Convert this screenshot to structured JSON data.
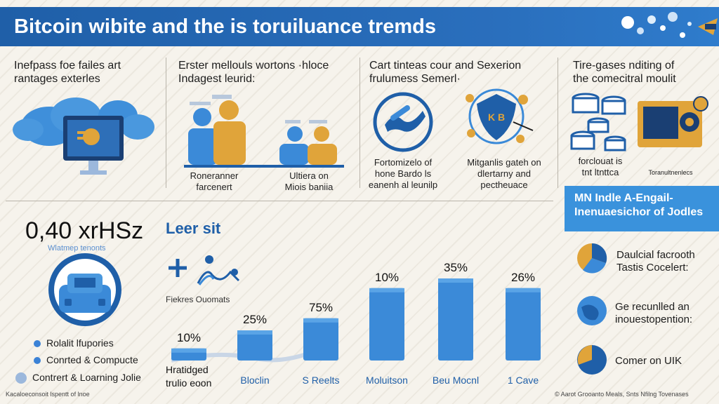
{
  "header": {
    "title": "Bitcoin wibite and the is toruiluance tremds"
  },
  "panels": [
    {
      "line1": "Inefpass foe failes art",
      "line2": "rantages exterles"
    },
    {
      "line1": "Erster mellouls wortons ·hloce",
      "line2": "Indagest leurid:",
      "captions": [
        {
          "line1": "Roneranner",
          "line2": "farcenert"
        },
        {
          "line1": "Ultiera on",
          "line2": "Miois baniia"
        }
      ]
    },
    {
      "line1": "Cart tinteas cour and Sexerion",
      "line2": "frulumess Semerl·",
      "captions": [
        {
          "line1": "Fortomizelo of",
          "line2": "hone Bardo ls",
          "line3": "eanenh al leunilp"
        },
        {
          "line1": "Mitganlis gateh on",
          "line2": "dlertarny and",
          "line3": "pectheuace"
        }
      ],
      "shield_text": "K B"
    },
    {
      "line1": "Tire-gases nditing of",
      "line2": "the comecitral moulit",
      "caption": {
        "line1": "forclouat is",
        "line2": "tnt ltnttca"
      },
      "small_caption": "Toranultnenlecs"
    }
  ],
  "stats": {
    "big": "0,40 xrHSz",
    "sub": "Wlatmep tenonts",
    "legend": [
      "Rolalit lfupories",
      "Conrted & Compucte",
      "Contrert & Loarning Jolie"
    ]
  },
  "chart_data": {
    "type": "bar",
    "title": "Leer sit",
    "note": "Fiekres Ouomats",
    "categories": [
      "Hratidged trulio eoon",
      "Bloclin",
      "S Reelts",
      "Moluitson",
      "Beu Mocnl",
      "1 Cave"
    ],
    "values": [
      10,
      25,
      75,
      10,
      35,
      26
    ],
    "labels": [
      "10%",
      "25%",
      "75%",
      "10%",
      "35%",
      "26%"
    ],
    "heights_pct": [
      10,
      25,
      35,
      60,
      68,
      60
    ],
    "color": "#3b8ad8"
  },
  "sidebar": {
    "box_line1": "MN Indle A-Engail-",
    "box_line2": "Inenuaesichor of Jodles",
    "items": [
      {
        "line1": "Daulcial facrooth",
        "line2": "Tastis Cocelert:"
      },
      {
        "line1": "Ge recunlled an",
        "line2": "inouestopention:"
      },
      {
        "line1": "Comer on UIK",
        "line2": ""
      }
    ]
  },
  "footer": {
    "left": "Kacaloeconsoit lspentt of lnoe",
    "right": "© Aarot Grooanto Meals, Snts Nfilng Tovenases"
  },
  "colors": {
    "primary": "#1f5fa8",
    "accent": "#3b8ad8",
    "gold": "#e0a43a"
  }
}
